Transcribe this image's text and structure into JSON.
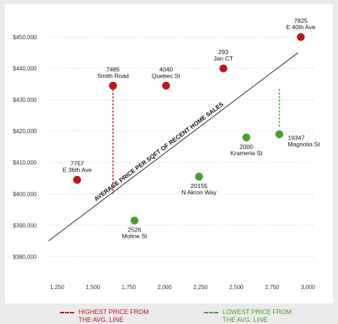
{
  "chart_data": {
    "type": "scatter",
    "title": "",
    "xlabel": "",
    "ylabel": "",
    "xlim": [
      1200,
      3100
    ],
    "ylim": [
      376000,
      455000
    ],
    "x_ticks": [
      1250,
      1500,
      1750,
      2000,
      2250,
      2500,
      2750,
      3000
    ],
    "x_tick_labels": [
      "1,250",
      "1,500",
      "1,750",
      "2,000",
      "2,250",
      "2,500",
      "2,750",
      "3,000"
    ],
    "y_ticks": [
      380000,
      390000,
      400000,
      410000,
      420000,
      430000,
      440000,
      450000
    ],
    "y_tick_labels": [
      "$380,000",
      "$390,000",
      "$400,000",
      "$410,000",
      "$420,000",
      "$430,000",
      "$440,000",
      "$450,000"
    ],
    "grid": "horizontal-dotted",
    "points": [
      {
        "x": 2950,
        "y": 450000,
        "label_num": "7825",
        "label_name": "E 40th Ave",
        "group": "high"
      },
      {
        "x": 1640,
        "y": 434500,
        "label_num": "7485",
        "label_name": "Smith Road",
        "group": "high"
      },
      {
        "x": 2010,
        "y": 434500,
        "label_num": "4040",
        "label_name": "Quebec St",
        "group": "high"
      },
      {
        "x": 2410,
        "y": 440000,
        "label_num": "293",
        "label_name": "Jan CT",
        "group": "high"
      },
      {
        "x": 1390,
        "y": 404500,
        "label_num": "7757",
        "label_name": "E 36th Ave",
        "group": "high"
      },
      {
        "x": 2800,
        "y": 419000,
        "label_num": "19347",
        "label_name": "Magnolia St",
        "group": "low"
      },
      {
        "x": 2570,
        "y": 418000,
        "label_num": "2000",
        "label_name": "Krameria St",
        "group": "low"
      },
      {
        "x": 2240,
        "y": 405500,
        "label_num": "20155",
        "label_name": "N Akron Way",
        "group": "low"
      },
      {
        "x": 1790,
        "y": 391500,
        "label_num": "2526",
        "label_name": "Moline St",
        "group": "low"
      }
    ],
    "trend_line": {
      "x": [
        1190,
        2930
      ],
      "y": [
        385000,
        445000
      ],
      "label": "AVERAGE PRICE PER SQFT OF RECENT HOME SALES"
    },
    "deviation_lines": [
      {
        "x": 1640,
        "y_from": 434500,
        "y_to": 400000,
        "group": "high"
      },
      {
        "x": 2800,
        "y_from": 433500,
        "y_to": 421000,
        "group": "low"
      }
    ],
    "colors": {
      "high": "#c0141c",
      "low": "#4a9e2c",
      "axis_text": "#333333",
      "grid": "#bfbfbf",
      "trend": "#222222"
    }
  },
  "legend": {
    "high": {
      "text": "HIGHEST PRICE FROM\nTHE AVG. LINE",
      "color": "#c0141c"
    },
    "low": {
      "text": "LOWEST PRICE  FROM\nTHE AVG. LINE",
      "color": "#4a9e2c"
    }
  }
}
